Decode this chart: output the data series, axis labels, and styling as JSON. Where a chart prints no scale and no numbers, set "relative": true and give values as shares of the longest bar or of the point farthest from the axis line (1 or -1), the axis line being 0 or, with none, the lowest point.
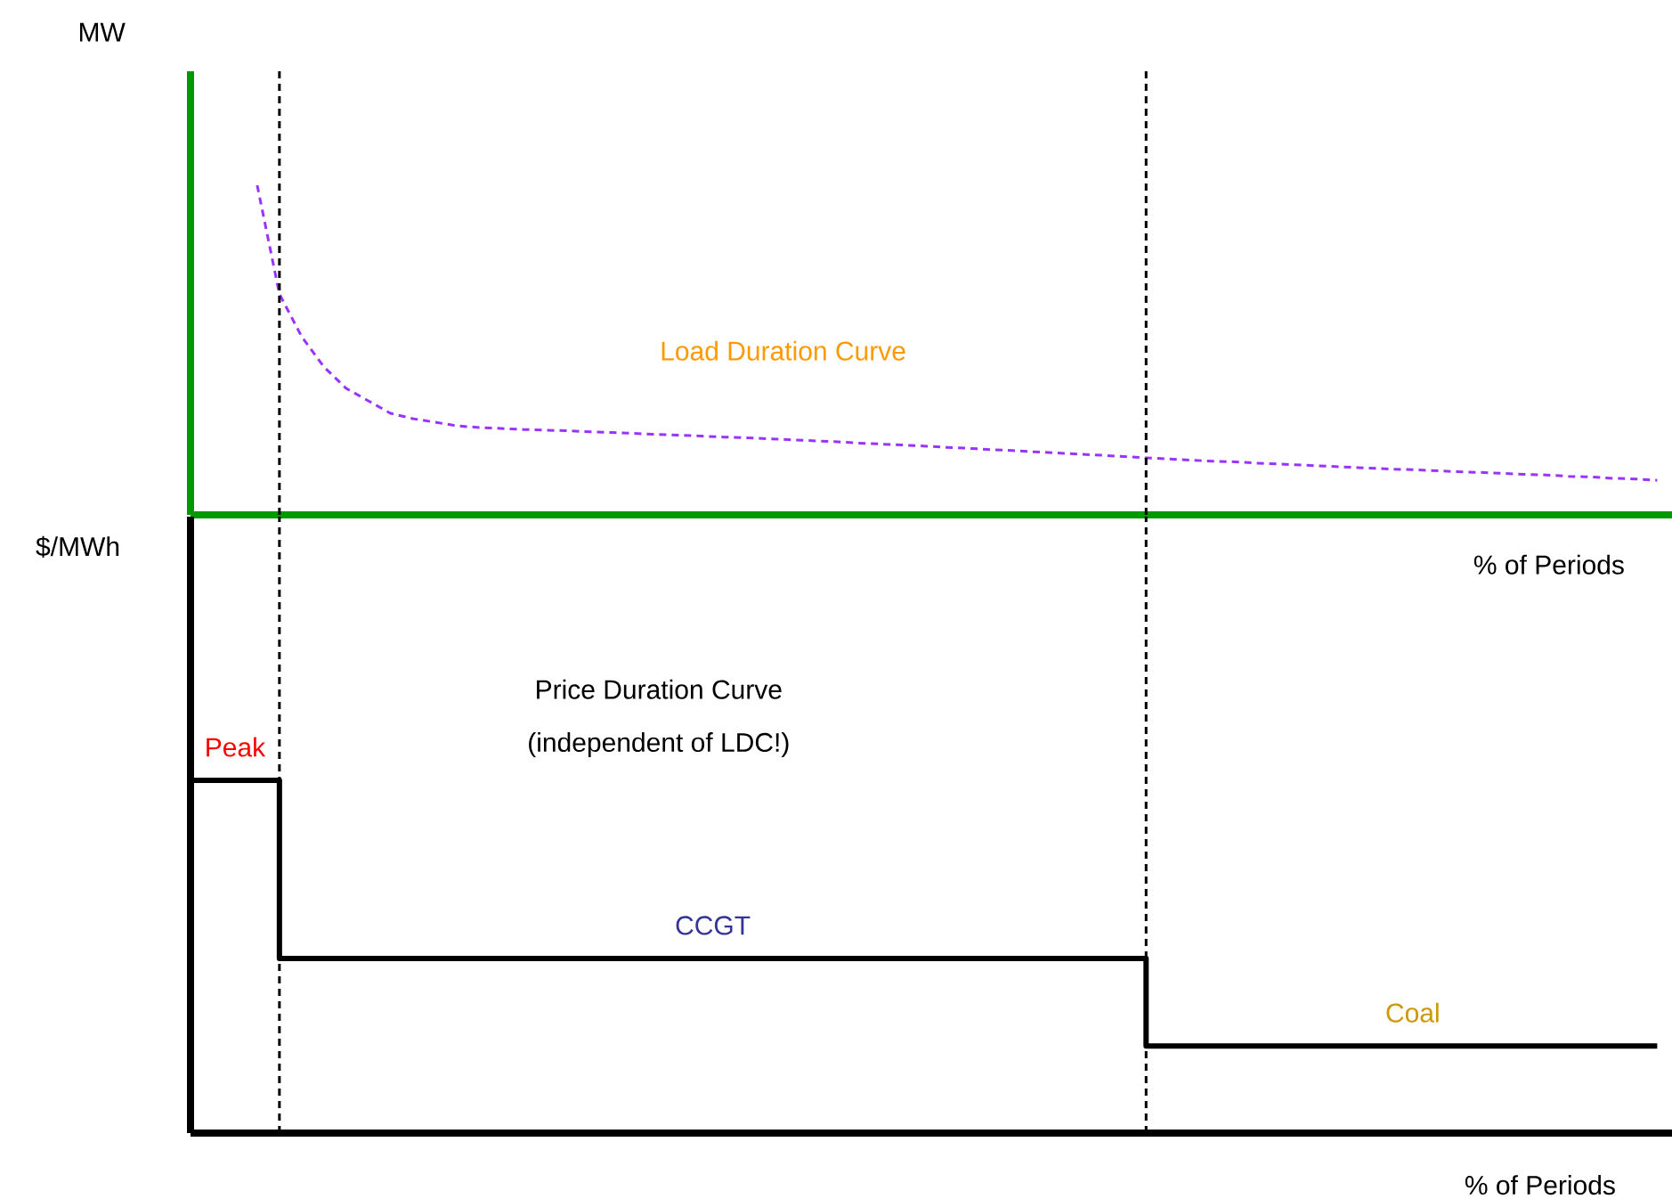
{
  "chart_data": [
    {
      "type": "line",
      "relative": true,
      "xlabel": "% of Periods",
      "ylabel": "MW",
      "tick_labels": false,
      "marker": "none",
      "line_style": "dashed",
      "categories": [
        null,
        null,
        null,
        null,
        null,
        null,
        null,
        null,
        null,
        null,
        null,
        null,
        null,
        null,
        null,
        null,
        null,
        null,
        null,
        null,
        null,
        null,
        null,
        null,
        null,
        null,
        null,
        null,
        null,
        null,
        null,
        null,
        null,
        null,
        null,
        null,
        null,
        null,
        null,
        null,
        null,
        null,
        null,
        null,
        null,
        null,
        null,
        null,
        null,
        null,
        null,
        null,
        null,
        null,
        null,
        null,
        null,
        null,
        null,
        null,
        null,
        null,
        null,
        null,
        null,
        null,
        null
      ],
      "series": [
        {
          "name": "Load Duration Curve",
          "color": "#9933ff",
          "values": [
            null,
            null,
            null,
            1,
            0.67,
            0.541,
            0.449,
            0.384,
            0.346,
            0.308,
            0.292,
            0.281,
            0.27,
            0.265,
            0.262,
            0.259,
            0.257,
            0.255,
            0.252,
            0.25,
            0.247,
            0.244,
            0.242,
            0.239,
            0.236,
            0.234,
            0.231,
            0.228,
            0.225,
            0.222,
            0.218,
            0.215,
            0.212,
            0.209,
            0.205,
            0.202,
            0.198,
            0.195,
            0.191,
            0.188,
            0.184,
            0.181,
            0.177,
            0.173,
            0.17,
            0.166,
            0.163,
            0.161,
            0.157,
            0.154,
            0.151,
            0.148,
            0.145,
            0.142,
            0.139,
            0.137,
            0.134,
            0.131,
            0.129,
            0.126,
            0.123,
            0.121,
            0.117,
            0.115,
            0.111,
            0.109,
            0.105
          ]
        }
      ]
    },
    {
      "type": "step",
      "relative": true,
      "xlabel": "% of Periods",
      "ylabel": "$/MWh",
      "tick_labels": false,
      "marker": "none",
      "line_style": "solid",
      "annotations": [
        "Price Duration Curve",
        "(independent of LDC!)",
        {
          "text": "Peak",
          "y": 1
        },
        {
          "text": "CCGT",
          "y": 0.495
        },
        {
          "text": "Coal",
          "y": 0.247
        }
      ],
      "categories": [
        null,
        null,
        null,
        null,
        null,
        null,
        null,
        null,
        null,
        null,
        null,
        null,
        null,
        null,
        null,
        null,
        null,
        null,
        null,
        null,
        null,
        null,
        null,
        null,
        null,
        null,
        null,
        null,
        null,
        null,
        null,
        null,
        null,
        null,
        null,
        null,
        null,
        null,
        null,
        null,
        null,
        null,
        null,
        null,
        null,
        null,
        null,
        null,
        null,
        null,
        null,
        null,
        null,
        null,
        null,
        null,
        null,
        null,
        null,
        null,
        null,
        null,
        null,
        null,
        null,
        null,
        null
      ],
      "series": [
        {
          "color": "#000000",
          "values": [
            1,
            1,
            1,
            1,
            0.495,
            0.495,
            0.495,
            0.495,
            0.495,
            0.495,
            0.495,
            0.495,
            0.495,
            0.495,
            0.495,
            0.495,
            0.495,
            0.495,
            0.495,
            0.495,
            0.495,
            0.495,
            0.495,
            0.495,
            0.495,
            0.495,
            0.495,
            0.495,
            0.495,
            0.495,
            0.495,
            0.495,
            0.495,
            0.495,
            0.495,
            0.495,
            0.495,
            0.495,
            0.495,
            0.495,
            0.495,
            0.495,
            0.495,
            0.247,
            0.247,
            0.247,
            0.247,
            0.247,
            0.247,
            0.247,
            0.247,
            0.247,
            0.247,
            0.247,
            0.247,
            0.247,
            0.247,
            0.247,
            0.247,
            0.247,
            0.247,
            0.247,
            0.247,
            0.247,
            0.247,
            0.247,
            0.247
          ]
        }
      ]
    }
  ]
}
